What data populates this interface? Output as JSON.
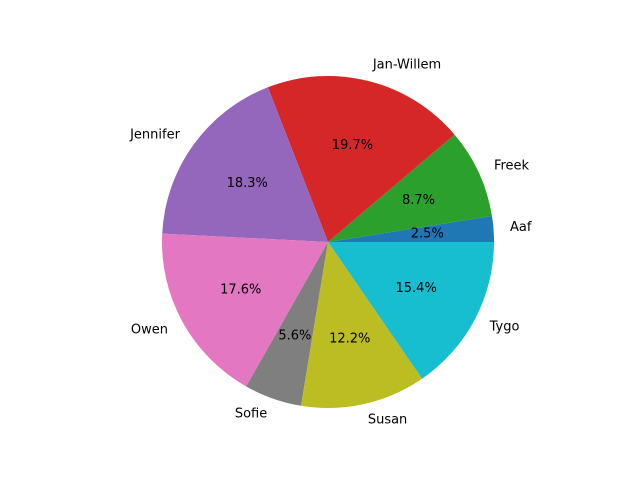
{
  "chart_data": {
    "type": "pie",
    "start_angle_deg": 0,
    "direction": "counterclockwise",
    "slices": [
      {
        "label": "Aaf",
        "value": 2.5,
        "pct_label": "2.5%",
        "color": "#1f77b4"
      },
      {
        "label": "Freek",
        "value": 8.7,
        "pct_label": "8.7%",
        "color": "#2ca02c"
      },
      {
        "label": "Jan-Willem",
        "value": 19.7,
        "pct_label": "19.7%",
        "color": "#d62728"
      },
      {
        "label": "Jennifer",
        "value": 18.3,
        "pct_label": "18.3%",
        "color": "#9467bd"
      },
      {
        "label": "Owen",
        "value": 17.6,
        "pct_label": "17.6%",
        "color": "#e377c2"
      },
      {
        "label": "Sofie",
        "value": 5.6,
        "pct_label": "5.6%",
        "color": "#7f7f7f"
      },
      {
        "label": "Susan",
        "value": 12.2,
        "pct_label": "12.2%",
        "color": "#bcbd22"
      },
      {
        "label": "Tygo",
        "value": 15.4,
        "pct_label": "15.4%",
        "color": "#17becf"
      }
    ]
  }
}
